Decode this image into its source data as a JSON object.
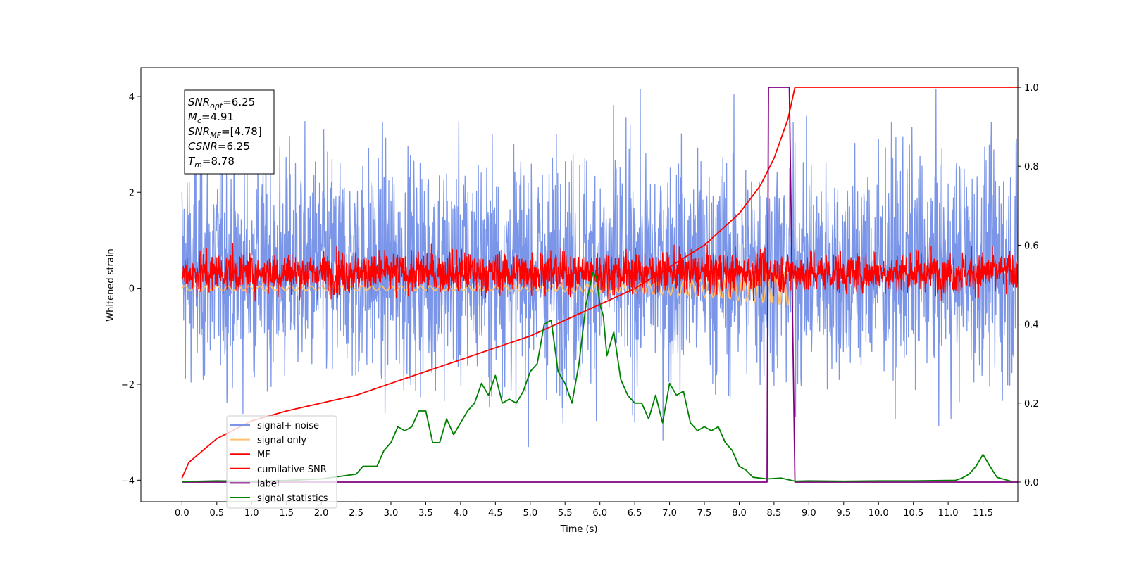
{
  "chart_data": {
    "type": "line",
    "xlabel": "Time (s)",
    "ylabel": "Whitened strain",
    "xlim": [
      -0.59,
      12.0
    ],
    "ylim_left": [
      -4.45,
      4.6
    ],
    "ylim_right": [
      -0.05,
      1.05
    ],
    "x_ticks": [
      "0.0",
      "0.5",
      "1.0",
      "1.5",
      "2.0",
      "2.5",
      "3.0",
      "3.5",
      "4.0",
      "4.5",
      "5.0",
      "5.5",
      "6.0",
      "6.5",
      "7.0",
      "7.5",
      "8.0",
      "8.5",
      "9.0",
      "9.5",
      "10.0",
      "10.5",
      "11.0",
      "11.5"
    ],
    "y_ticks_left": [
      "−4",
      "−2",
      "0",
      "2",
      "4"
    ],
    "y_ticks_right": [
      "0.0",
      "0.2",
      "0.4",
      "0.6",
      "0.8",
      "1.0"
    ],
    "legend_position": "lower-left",
    "legend": [
      {
        "label": "signal+ noise",
        "color": "#7b96e8"
      },
      {
        "label": "signal only",
        "color": "#ffbf6b"
      },
      {
        "label": "MF",
        "color": "#ff0000"
      },
      {
        "label": "cumilative SNR",
        "color": "#ff0000"
      },
      {
        "label": "label",
        "color": "#800080"
      },
      {
        "label": "signal statistics",
        "color": "#008000"
      }
    ],
    "annotation": [
      {
        "base": "SNR",
        "sub": "opt",
        "value": "=6.25"
      },
      {
        "base": "M",
        "sub": "c",
        "value": "=4.91"
      },
      {
        "base": "SNR",
        "sub": "MF",
        "value": "=[4.78]"
      },
      {
        "base": "CSNR",
        "sub": "",
        "value": "=6.25"
      },
      {
        "base": "T",
        "sub": "m",
        "value": "=8.78"
      }
    ],
    "series": [
      {
        "name": "signal+ noise",
        "axis": "left",
        "kind": "noise",
        "t_range": [
          0,
          12.0
        ],
        "envelope": [
          -3.3,
          4.15
        ],
        "color": "#7b96e8"
      },
      {
        "name": "signal only",
        "axis": "left",
        "kind": "chirp",
        "t_range": [
          0,
          8.78
        ],
        "color": "#ffbf6b"
      },
      {
        "name": "MF",
        "axis": "left",
        "kind": "noise",
        "t_range": [
          0,
          12.0
        ],
        "envelope": [
          -0.35,
          1.0
        ],
        "color": "#ff0000"
      },
      {
        "name": "cumilative SNR",
        "axis": "right",
        "color": "#ff0000",
        "x": [
          0.0,
          0.1,
          0.5,
          1.0,
          1.5,
          2.0,
          2.5,
          3.0,
          3.5,
          4.0,
          4.5,
          5.0,
          5.5,
          6.0,
          6.5,
          7.0,
          7.5,
          8.0,
          8.3,
          8.5,
          8.7,
          8.8,
          12.0
        ],
        "y": [
          0.01,
          0.05,
          0.11,
          0.155,
          0.18,
          0.2,
          0.22,
          0.25,
          0.28,
          0.31,
          0.34,
          0.37,
          0.41,
          0.45,
          0.49,
          0.545,
          0.6,
          0.68,
          0.75,
          0.82,
          0.92,
          1.0,
          1.0
        ]
      },
      {
        "name": "label",
        "axis": "right",
        "color": "#800080",
        "x": [
          0.0,
          8.4,
          8.42,
          8.72,
          8.8,
          12.0
        ],
        "y": [
          0.0,
          0.0,
          1.0,
          1.0,
          0.0,
          0.0
        ]
      },
      {
        "name": "signal statistics",
        "axis": "right",
        "color": "#008000",
        "x": [
          0.0,
          0.5,
          1.0,
          1.5,
          2.0,
          2.3,
          2.5,
          2.6,
          2.8,
          2.9,
          3.0,
          3.1,
          3.2,
          3.3,
          3.4,
          3.5,
          3.6,
          3.7,
          3.8,
          3.9,
          4.0,
          4.1,
          4.2,
          4.3,
          4.4,
          4.5,
          4.6,
          4.7,
          4.8,
          4.9,
          5.0,
          5.1,
          5.2,
          5.3,
          5.4,
          5.5,
          5.6,
          5.7,
          5.8,
          5.9,
          5.95,
          6.0,
          6.05,
          6.1,
          6.2,
          6.3,
          6.4,
          6.5,
          6.6,
          6.7,
          6.8,
          6.9,
          7.0,
          7.1,
          7.2,
          7.3,
          7.4,
          7.5,
          7.6,
          7.7,
          7.8,
          7.9,
          8.0,
          8.1,
          8.2,
          8.4,
          8.6,
          8.8,
          9.0,
          9.5,
          10.0,
          10.5,
          11.0,
          11.1,
          11.2,
          11.3,
          11.4,
          11.5,
          11.6,
          11.7,
          11.9
        ],
        "y": [
          0.001,
          0.003,
          0.002,
          0.004,
          0.008,
          0.015,
          0.02,
          0.04,
          0.04,
          0.08,
          0.1,
          0.14,
          0.13,
          0.14,
          0.18,
          0.18,
          0.1,
          0.1,
          0.16,
          0.12,
          0.15,
          0.18,
          0.2,
          0.25,
          0.22,
          0.27,
          0.2,
          0.21,
          0.2,
          0.23,
          0.28,
          0.3,
          0.4,
          0.41,
          0.28,
          0.25,
          0.2,
          0.3,
          0.45,
          0.53,
          0.52,
          0.45,
          0.42,
          0.32,
          0.38,
          0.26,
          0.22,
          0.2,
          0.2,
          0.16,
          0.22,
          0.15,
          0.25,
          0.22,
          0.23,
          0.15,
          0.13,
          0.14,
          0.13,
          0.14,
          0.1,
          0.08,
          0.04,
          0.03,
          0.012,
          0.008,
          0.01,
          0.002,
          0.003,
          0.002,
          0.003,
          0.003,
          0.004,
          0.004,
          0.01,
          0.02,
          0.04,
          0.07,
          0.04,
          0.012,
          0.002
        ]
      }
    ]
  }
}
